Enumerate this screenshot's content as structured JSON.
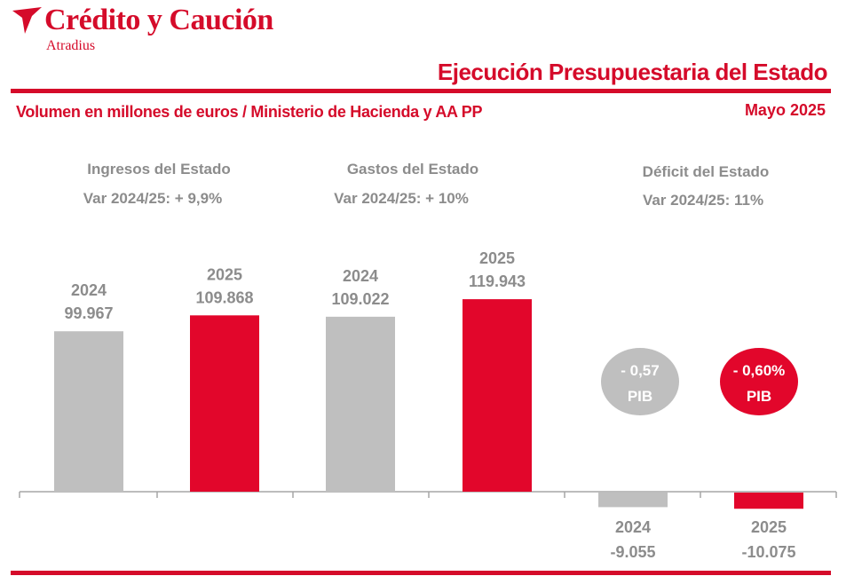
{
  "header": {
    "brand_name": "Crédito y Caución",
    "brand_sub": "Atradius",
    "title": "Ejecución Presupuestaria del Estado",
    "subtitle": "Volumen en millones de euros  / Ministerio de Hacienda y AA PP",
    "date": "Mayo 2025"
  },
  "colors": {
    "accent": "#d50b2a",
    "gray_bar": "#bfbfbf",
    "gray_text": "#8c8c8c",
    "axis": "#a6a6a6"
  },
  "groups": [
    {
      "title": "Ingresos del Estado",
      "var": "Var 2024/25: + 9,9%"
    },
    {
      "title": "Gastos del Estado",
      "var": "Var 2024/25: + 10%"
    },
    {
      "title": "Déficit del Estado",
      "var": "Var 2024/25: 11%"
    }
  ],
  "chart_data": {
    "type": "bar",
    "grid": false,
    "bars": [
      {
        "group": "Ingresos del Estado",
        "year": "2024",
        "value": 99967,
        "label": "99.967",
        "color": "#bfbfbf"
      },
      {
        "group": "Ingresos del Estado",
        "year": "2025",
        "value": 109868,
        "label": "109.868",
        "color": "#e2062b"
      },
      {
        "group": "Gastos del Estado",
        "year": "2024",
        "value": 109022,
        "label": "109.022",
        "color": "#bfbfbf"
      },
      {
        "group": "Gastos del Estado",
        "year": "2025",
        "value": 119943,
        "label": "119.943",
        "color": "#e2062b"
      },
      {
        "group": "Déficit del Estado",
        "year": "2024",
        "value": -9055,
        "label": "-9.055",
        "color": "#bfbfbf"
      },
      {
        "group": "Déficit del Estado",
        "year": "2025",
        "value": -10075,
        "label": "-10.075",
        "color": "#e2062b"
      }
    ],
    "pib_badges": [
      {
        "year": "2024",
        "value": "- 0,57",
        "unit": "PIB",
        "color": "#bfbfbf"
      },
      {
        "year": "2025",
        "value": "- 0,60%",
        "unit": "PIB",
        "color": "#e2062b"
      }
    ]
  }
}
